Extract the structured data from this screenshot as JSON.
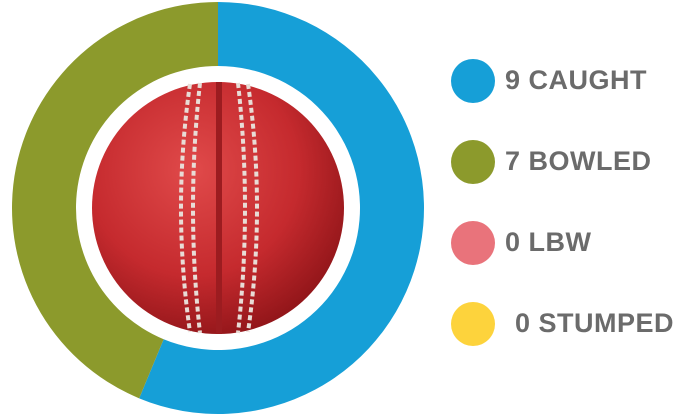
{
  "chart_data": {
    "type": "donut",
    "categories": [
      "CAUGHT",
      "BOWLED",
      "LBW",
      "STUMPED"
    ],
    "values": [
      9,
      7,
      0,
      0
    ],
    "colors": [
      "#169fd7",
      "#8c9a2c",
      "#e9737b",
      "#fdd33c"
    ]
  }
}
